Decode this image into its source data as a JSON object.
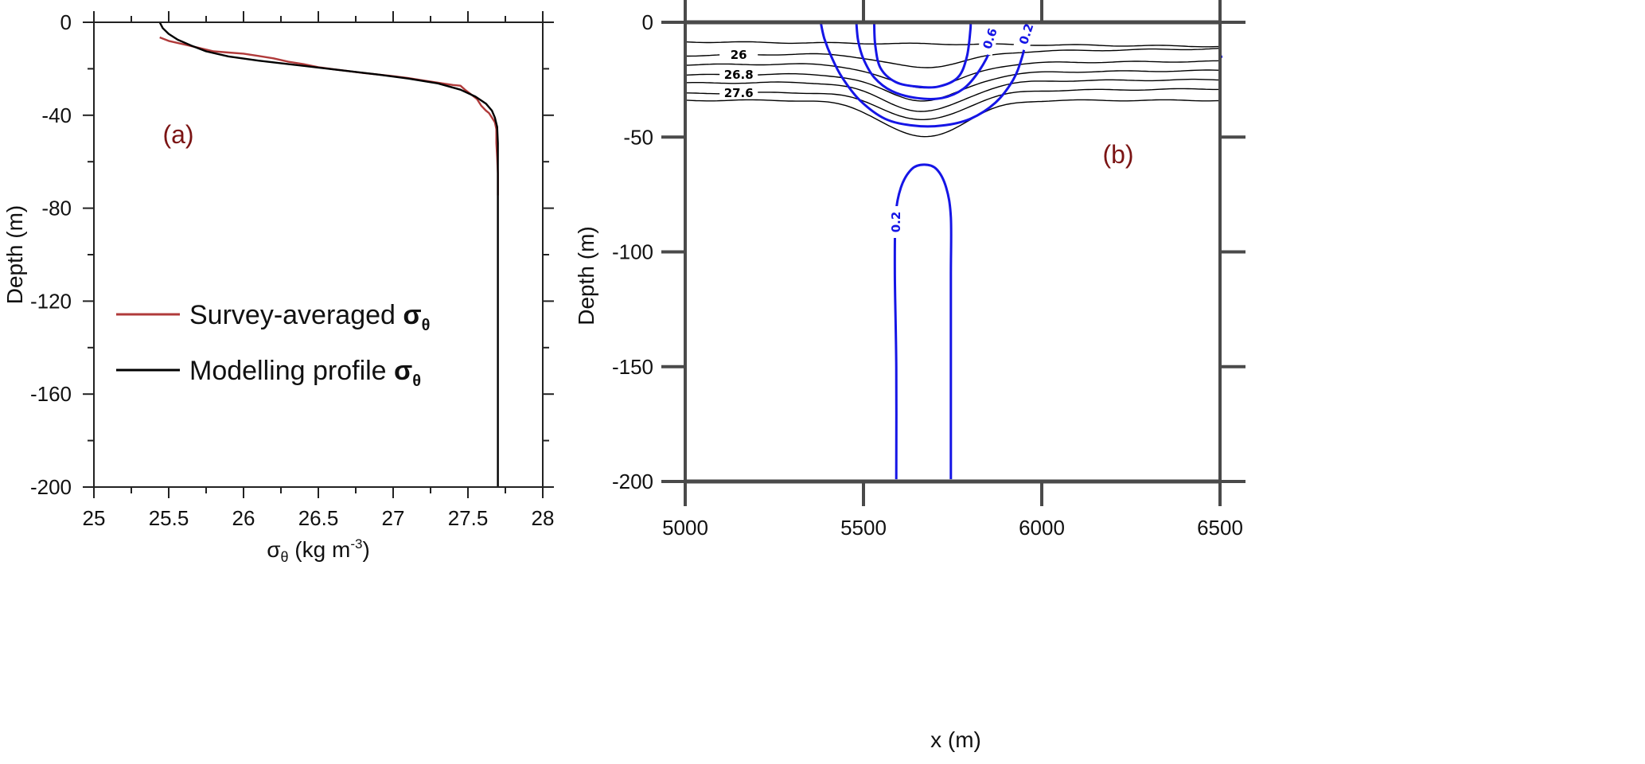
{
  "colors": {
    "survey": "#b03a3a",
    "model": "#000000",
    "label": "#7b1414",
    "velocity": "#1515e6",
    "axis": "#4a4a4a"
  },
  "chart_data": [
    {
      "panel": "a",
      "panel_label": "(a)",
      "type": "line",
      "xlabel": "σθ (kg m-3)",
      "xlabel_parts": {
        "sym": "σ",
        "sub": "θ",
        "rest": " (kg m",
        "sup": "-3",
        "end": ")"
      },
      "ylabel": "Depth (m)",
      "xlim": [
        25,
        28
      ],
      "ylim": [
        -200,
        0
      ],
      "xticks": [
        25,
        25.5,
        26,
        26.5,
        27,
        27.5,
        28
      ],
      "xtick_labels": [
        "25",
        "25.5",
        "26",
        "26.5",
        "27",
        "27.5",
        "28"
      ],
      "yticks": [
        0,
        -40,
        -80,
        -120,
        -160,
        -200
      ],
      "ytick_labels": [
        "0",
        "-40",
        "-80",
        "-120",
        "-160",
        "-200"
      ],
      "legend": [
        {
          "text": "Survey-averaged ",
          "sym": "σ",
          "sub": "θ",
          "color_key": "survey"
        },
        {
          "text": "Modelling profile ",
          "sym": "σ",
          "sub": "θ",
          "color_key": "model"
        }
      ],
      "series": [
        {
          "name": "Survey-averaged σθ",
          "color_key": "survey",
          "points": [
            [
              25.44,
              -6.5
            ],
            [
              25.5,
              -8
            ],
            [
              25.6,
              -9.5
            ],
            [
              25.7,
              -11
            ],
            [
              25.8,
              -12.5
            ],
            [
              25.9,
              -13
            ],
            [
              26.0,
              -13.5
            ],
            [
              26.1,
              -14.5
            ],
            [
              26.2,
              -15.5
            ],
            [
              26.3,
              -17
            ],
            [
              26.4,
              -18
            ],
            [
              26.5,
              -19.3
            ],
            [
              26.6,
              -20.2
            ],
            [
              26.7,
              -21
            ],
            [
              26.8,
              -21.8
            ],
            [
              26.9,
              -22.5
            ],
            [
              27.0,
              -23.2
            ],
            [
              27.1,
              -24
            ],
            [
              27.2,
              -25
            ],
            [
              27.3,
              -26
            ],
            [
              27.4,
              -27
            ],
            [
              27.45,
              -27.3
            ],
            [
              27.48,
              -29
            ],
            [
              27.52,
              -31
            ],
            [
              27.56,
              -33
            ],
            [
              27.59,
              -36
            ],
            [
              27.62,
              -38
            ],
            [
              27.64,
              -39
            ],
            [
              27.66,
              -41
            ],
            [
              27.68,
              -43
            ],
            [
              27.69,
              -46
            ],
            [
              27.69,
              -52
            ],
            [
              27.695,
              -58
            ],
            [
              27.7,
              -65
            ],
            [
              27.7,
              -74.5
            ]
          ]
        },
        {
          "name": "Modelling profile σθ",
          "color_key": "model",
          "points": [
            [
              25.44,
              0
            ],
            [
              25.46,
              -2.5
            ],
            [
              25.5,
              -5
            ],
            [
              25.56,
              -7.5
            ],
            [
              25.65,
              -10
            ],
            [
              25.75,
              -12.5
            ],
            [
              25.9,
              -14.7
            ],
            [
              26.1,
              -16.5
            ],
            [
              26.3,
              -18
            ],
            [
              26.5,
              -19.5
            ],
            [
              26.7,
              -21
            ],
            [
              26.9,
              -22.5
            ],
            [
              27.1,
              -24.2
            ],
            [
              27.3,
              -26.3
            ],
            [
              27.45,
              -29
            ],
            [
              27.55,
              -32
            ],
            [
              27.62,
              -35
            ],
            [
              27.66,
              -38
            ],
            [
              27.68,
              -41
            ],
            [
              27.695,
              -45
            ],
            [
              27.7,
              -52
            ],
            [
              27.7,
              -200
            ]
          ]
        }
      ]
    },
    {
      "panel": "b",
      "panel_label": "(b)",
      "type": "contour",
      "xlabel": "x (m)",
      "ylabel": "Depth  (m)",
      "xlim": [
        5000,
        6500
      ],
      "ylim": [
        -200,
        0
      ],
      "xticks": [
        5000,
        5500,
        6000,
        6500
      ],
      "xtick_labels": [
        "5000",
        "5500",
        "6000",
        "6500"
      ],
      "yticks": [
        0,
        -50,
        -100,
        -150,
        -200
      ],
      "ytick_labels": [
        "0",
        "-50",
        "-100",
        "-150",
        "-200"
      ],
      "density_contours": [
        {
          "label": "",
          "base": -8.5,
          "dip": 0,
          "end": -10.5
        },
        {
          "label": "26",
          "base": -14.5,
          "dip": 6.5,
          "end": -11.5
        },
        {
          "label": "",
          "base": -18.5,
          "dip": 10.5,
          "end": -17
        },
        {
          "label": "26.8",
          "base": -23,
          "dip": 12,
          "end": -21
        },
        {
          "label": "",
          "base": -26.5,
          "dip": 13,
          "end": -25
        },
        {
          "label": "27.6",
          "base": -31,
          "dip": 12.5,
          "end": -29
        },
        {
          "label": "",
          "base": -34,
          "dip": 16,
          "end": -34
        }
      ],
      "density_center_x": 5670,
      "density_halfwidth": 160,
      "velocity_contours": [
        {
          "label": "0.6",
          "points": [
            [
              5480,
              0
            ],
            [
              5485,
              -8
            ],
            [
              5500,
              -16
            ],
            [
              5530,
              -24
            ],
            [
              5580,
              -30
            ],
            [
              5650,
              -33
            ],
            [
              5720,
              -33
            ],
            [
              5780,
              -29
            ],
            [
              5825,
              -21
            ],
            [
              5858,
              -11
            ],
            [
              5870,
              0
            ]
          ]
        },
        {
          "label": "0.2",
          "points": [
            [
              5380,
              0
            ],
            [
              5390,
              -7
            ],
            [
              5410,
              -15
            ],
            [
              5440,
              -24
            ],
            [
              5490,
              -34
            ],
            [
              5560,
              -42
            ],
            [
              5640,
              -45
            ],
            [
              5720,
              -45
            ],
            [
              5800,
              -42
            ],
            [
              5870,
              -35
            ],
            [
              5920,
              -25
            ],
            [
              5945,
              -15
            ],
            [
              5960,
              -5
            ]
          ]
        },
        {
          "label": "",
          "points": [
            [
              5530,
              0
            ],
            [
              5533,
              -10
            ],
            [
              5548,
              -20
            ],
            [
              5590,
              -26
            ],
            [
              5650,
              -28
            ],
            [
              5710,
              -28
            ],
            [
              5765,
              -24
            ],
            [
              5790,
              -15
            ],
            [
              5800,
              -3
            ],
            [
              5800,
              0
            ]
          ]
        },
        {
          "label": "0.2",
          "points": [
            [
              5592,
              -199
            ],
            [
              5592,
              -150
            ],
            [
              5588,
              -110
            ],
            [
              5590,
              -85
            ],
            [
              5605,
              -72
            ],
            [
              5635,
              -64
            ],
            [
              5670,
              -62
            ],
            [
              5705,
              -64
            ],
            [
              5732,
              -72
            ],
            [
              5745,
              -85
            ],
            [
              5745,
              -110
            ],
            [
              5745,
              -150
            ],
            [
              5745,
              -199
            ]
          ]
        }
      ]
    }
  ]
}
